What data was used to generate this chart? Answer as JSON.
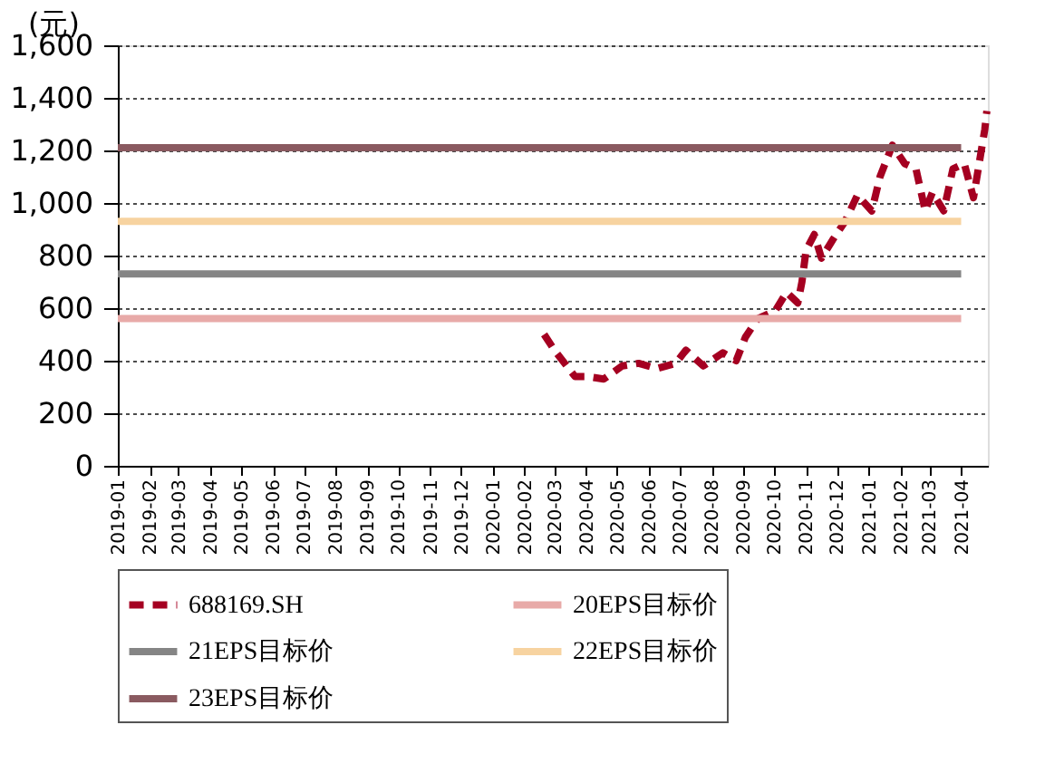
{
  "chart_data": {
    "type": "line",
    "ylabel": "(元)",
    "xlim": [
      "2019-01-01",
      "2021-04-27"
    ],
    "xticks": [
      "2019-01",
      "2019-02",
      "2019-03",
      "2019-04",
      "2019-05",
      "2019-06",
      "2019-07",
      "2019-08",
      "2019-09",
      "2019-10",
      "2019-11",
      "2019-12",
      "2020-01",
      "2020-02",
      "2020-03",
      "2020-04",
      "2020-05",
      "2020-06",
      "2020-07",
      "2020-08",
      "2020-09",
      "2020-10",
      "2020-11",
      "2020-12",
      "2021-01",
      "2021-02",
      "2021-03",
      "2021-04"
    ],
    "ylim": [
      0,
      1600
    ],
    "yticks": [
      0,
      200,
      400,
      600,
      800,
      {
        "value": 1000,
        "label": "1,000"
      },
      {
        "value": 1200,
        "label": "1,200"
      },
      {
        "value": 1400,
        "label": "1,400"
      },
      {
        "value": 1600,
        "label": "1,600"
      }
    ],
    "grid": "y",
    "legend": "bottom",
    "marker": "none",
    "series": [
      {
        "name": "688169.SH",
        "color": "#a50021",
        "line_style": "dashed",
        "x": [
          "2020-02-20",
          "2020-03-01",
          "2020-03-21",
          "2020-04-02",
          "2020-04-18",
          "2020-05-06",
          "2020-05-22",
          "2020-06-09",
          "2020-06-27",
          "2020-07-07",
          "2020-07-24",
          "2020-08-12",
          "2020-08-25",
          "2020-09-03",
          "2020-09-15",
          "2020-10-02",
          "2020-10-13",
          "2020-10-24",
          "2020-10-28",
          "2020-11-01",
          "2020-11-09",
          "2020-11-16",
          "2020-11-27",
          "2020-12-09",
          "2020-12-21",
          "2021-01-04",
          "2021-01-12",
          "2021-01-24",
          "2021-02-05",
          "2021-02-16",
          "2021-02-25",
          "2021-03-04",
          "2021-03-15",
          "2021-03-24",
          "2021-04-04",
          "2021-04-13",
          "2021-04-24",
          "2021-04-26"
        ],
        "values": [
          500,
          440,
          340,
          340,
          330,
          380,
          390,
          370,
          390,
          440,
          380,
          430,
          400,
          490,
          560,
          590,
          660,
          620,
          700,
          820,
          880,
          790,
          860,
          930,
          1030,
          970,
          1100,
          1220,
          1150,
          1130,
          970,
          1040,
          970,
          1130,
          1150,
          1020,
          1280,
          1350
        ]
      },
      {
        "name": "20EPS目标价",
        "color": "#e8aaa8",
        "line_style": "solid",
        "x": [
          "2019-01-01",
          "2021-04-01"
        ],
        "values": [
          560,
          560
        ]
      },
      {
        "name": "21EPS目标价",
        "color": "#858585",
        "line_style": "solid",
        "x": [
          "2019-01-01",
          "2021-04-01"
        ],
        "values": [
          730,
          730
        ]
      },
      {
        "name": "22EPS目标价",
        "color": "#f7d3a0",
        "line_style": "solid",
        "x": [
          "2019-01-01",
          "2021-04-01"
        ],
        "values": [
          930,
          930
        ]
      },
      {
        "name": "23EPS目标价",
        "color": "#8a5a60",
        "line_style": "solid",
        "x": [
          "2019-01-01",
          "2021-04-01"
        ],
        "values": [
          1210,
          1210
        ]
      }
    ]
  }
}
